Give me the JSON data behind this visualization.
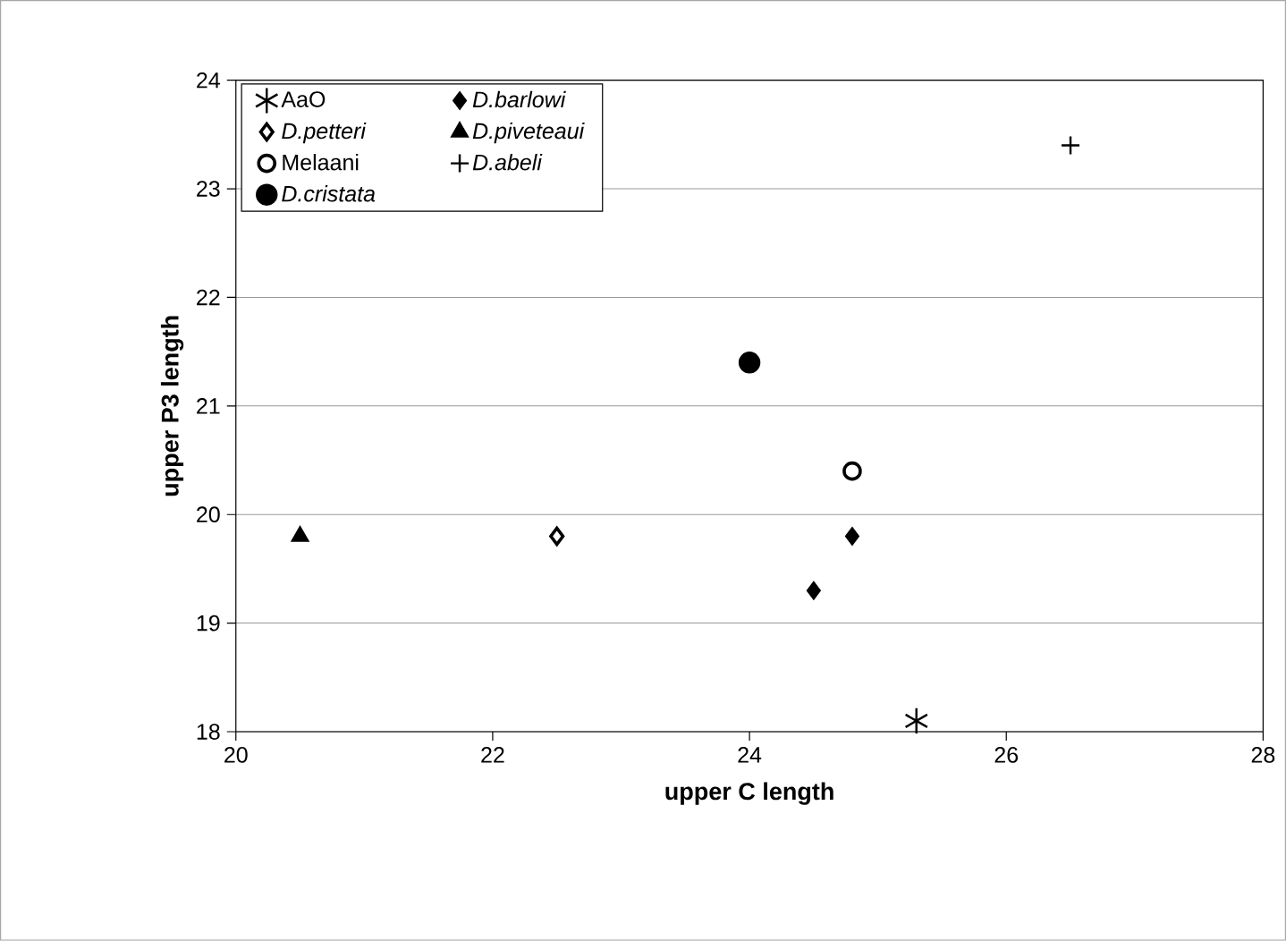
{
  "chart_data": {
    "type": "scatter",
    "xlabel": "upper C length",
    "ylabel": "upper P3 length",
    "xlim": [
      20,
      28
    ],
    "ylim": [
      18,
      24
    ],
    "xticks": [
      20,
      22,
      24,
      26,
      28
    ],
    "yticks": [
      18,
      19,
      20,
      21,
      22,
      23,
      24
    ],
    "grid": "y",
    "legend": "top left",
    "series": [
      {
        "name": "AaO",
        "color": "#000000",
        "x": [
          25.3
        ],
        "values": [
          18.1
        ]
      },
      {
        "name": "*D.barlowi*",
        "color": "#000000",
        "marker": "diamond",
        "x": [
          24.5,
          24.8
        ],
        "values": [
          19.3,
          19.8
        ]
      },
      {
        "name": "*D.petteri*",
        "color": "#000000",
        "marker": "diamond_open",
        "x": [
          22.5
        ],
        "values": [
          19.8
        ]
      },
      {
        "name": "*D.piveteaui*",
        "color": "#000000",
        "marker": "triangle",
        "x": [
          20.5
        ],
        "values": [
          19.8
        ]
      },
      {
        "name": "Melaani",
        "color": "#000000",
        "marker": "circle_open",
        "x": [
          24.8
        ],
        "values": [
          20.4
        ]
      },
      {
        "name": "*D.abeli*",
        "color": "#000000",
        "marker": "cross",
        "x": [
          26.5
        ],
        "values": [
          23.4
        ]
      },
      {
        "name": "*D.cristata*",
        "color": "#000000",
        "marker": "circle",
        "x": [
          24.0
        ],
        "values": [
          21.4
        ]
      }
    ]
  }
}
